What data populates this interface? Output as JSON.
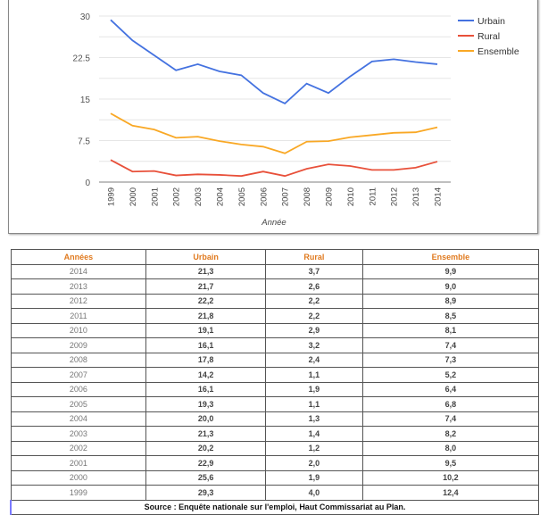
{
  "chart_data": {
    "type": "line",
    "x": [
      "1999",
      "2000",
      "2001",
      "2002",
      "2003",
      "2004",
      "2005",
      "2006",
      "2007",
      "2008",
      "2009",
      "2010",
      "2011",
      "2012",
      "2013",
      "2014"
    ],
    "series": [
      {
        "name": "Urbain",
        "color": "#4472e0",
        "values": [
          29.3,
          25.6,
          22.9,
          20.2,
          21.3,
          20.0,
          19.3,
          16.1,
          14.2,
          17.8,
          16.1,
          19.1,
          21.8,
          22.2,
          21.7,
          21.3
        ]
      },
      {
        "name": "Rural",
        "color": "#e8503a",
        "values": [
          4.0,
          1.9,
          2.0,
          1.2,
          1.4,
          1.3,
          1.1,
          1.9,
          1.1,
          2.4,
          3.2,
          2.9,
          2.2,
          2.2,
          2.6,
          3.7
        ]
      },
      {
        "name": "Ensemble",
        "color": "#f9a825",
        "values": [
          12.4,
          10.2,
          9.5,
          8.0,
          8.2,
          7.4,
          6.8,
          6.4,
          5.2,
          7.3,
          7.4,
          8.1,
          8.5,
          8.9,
          9.0,
          9.9
        ]
      }
    ],
    "yticks": [
      "0",
      "7.5",
      "15",
      "22.5",
      "30"
    ],
    "ylim": [
      0,
      30
    ],
    "xlabel": "Année",
    "ylabel": "",
    "grid": true,
    "legend": "right"
  },
  "table": {
    "headers": [
      "Années",
      "Urbain",
      "Rural",
      "Ensemble"
    ],
    "rows": [
      [
        "2014",
        "21,3",
        "3,7",
        "9,9"
      ],
      [
        "2013",
        "21,7",
        "2,6",
        "9,0"
      ],
      [
        "2012",
        "22,2",
        "2,2",
        "8,9"
      ],
      [
        "2011",
        "21,8",
        "2,2",
        "8,5"
      ],
      [
        "2010",
        "19,1",
        "2,9",
        "8,1"
      ],
      [
        "2009",
        "16,1",
        "3,2",
        "7,4"
      ],
      [
        "2008",
        "17,8",
        "2,4",
        "7,3"
      ],
      [
        "2007",
        "14,2",
        "1,1",
        "5,2"
      ],
      [
        "2006",
        "16,1",
        "1,9",
        "6,4"
      ],
      [
        "2005",
        "19,3",
        "1,1",
        "6,8"
      ],
      [
        "2004",
        "20,0",
        "1,3",
        "7,4"
      ],
      [
        "2003",
        "21,3",
        "1,4",
        "8,2"
      ],
      [
        "2002",
        "20,2",
        "1,2",
        "8,0"
      ],
      [
        "2001",
        "22,9",
        "2,0",
        "9,5"
      ],
      [
        "2000",
        "25,6",
        "1,9",
        "10,2"
      ],
      [
        "1999",
        "29,3",
        "4,0",
        "12,4"
      ]
    ],
    "source": "Source : Enquête nationale sur l'emploi, Haut Commissariat au Plan."
  }
}
